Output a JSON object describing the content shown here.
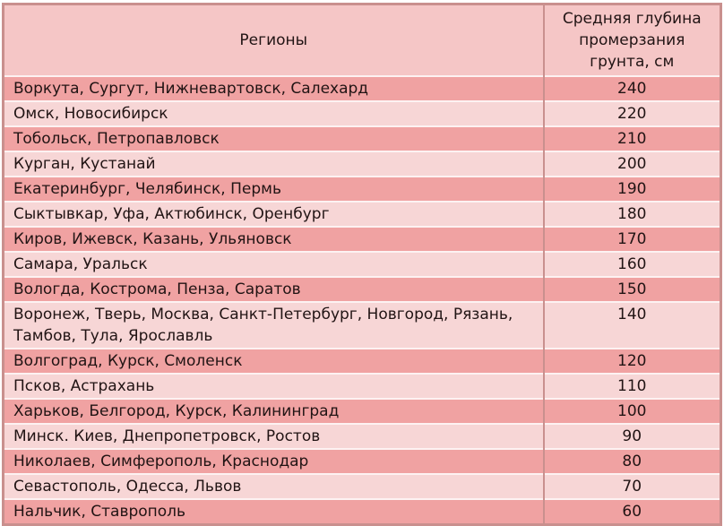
{
  "table": {
    "columns": {
      "regions_label": "Регионы",
      "depth_label": "Средняя глубина промерзания грунта, см"
    },
    "rows": [
      {
        "regions": "Воркута, Сургут, Нижневартовск, Салехард",
        "depth": 240
      },
      {
        "regions": "Омск, Новосибирск",
        "depth": 220
      },
      {
        "regions": "Тобольск, Петропавловск",
        "depth": 210
      },
      {
        "regions": "Курган, Кустанай",
        "depth": 200
      },
      {
        "regions": "Екатеринбург, Челябинск, Пермь",
        "depth": 190
      },
      {
        "regions": "Сыктывкар, Уфа, Актюбинск, Оренбург",
        "depth": 180
      },
      {
        "regions": "Киров, Ижевск, Казань, Ульяновск",
        "depth": 170
      },
      {
        "regions": "Самара, Уральск",
        "depth": 160
      },
      {
        "regions": "Вологда, Кострома, Пенза, Саратов",
        "depth": 150
      },
      {
        "regions": "Воронеж, Тверь, Москва, Санкт-Петербург, Новгород, Рязань, Тамбов, Тула, Ярославль",
        "depth": 140
      },
      {
        "regions": "Волгоград, Курск, Смоленск",
        "depth": 120
      },
      {
        "regions": "Псков, Астрахань",
        "depth": 110
      },
      {
        "regions": "Харьков, Белгород, Курск, Калининград",
        "depth": 100
      },
      {
        "regions": "Минск. Киев, Днепропетровск, Ростов",
        "depth": 90
      },
      {
        "regions": "Николаев, Симферополь, Краснодар",
        "depth": 80
      },
      {
        "regions": "Севастополь, Одесса, Львов",
        "depth": 70
      },
      {
        "regions": "Нальчик, Ставрополь",
        "depth": 60
      }
    ]
  },
  "colors": {
    "border": "#c9908e",
    "header_bg": "#f5c6c6",
    "row_dark": "#f0a2a2",
    "row_light": "#f7d6d6",
    "separator": "#fdf2f2",
    "text": "#211414"
  }
}
